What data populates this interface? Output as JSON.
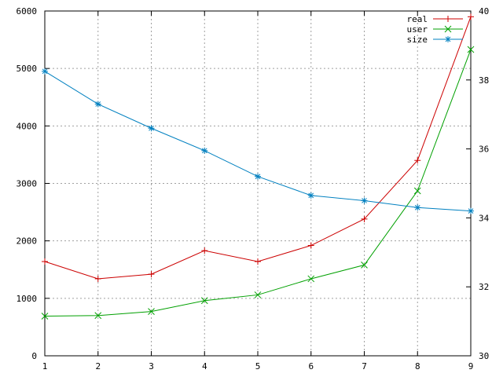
{
  "chart_data": {
    "type": "line",
    "title": "",
    "xlabel": "",
    "ylabel": "",
    "y2label": "",
    "x": [
      1,
      2,
      3,
      4,
      5,
      6,
      7,
      8,
      9
    ],
    "xlim": [
      1,
      9
    ],
    "ylim": [
      0,
      6000
    ],
    "y2lim": [
      30,
      40
    ],
    "grid": true,
    "legend_position": "top-right",
    "x_ticks": [
      "1",
      "2",
      "3",
      "4",
      "5",
      "6",
      "7",
      "8",
      "9"
    ],
    "y_ticks": [
      "0",
      "1000",
      "2000",
      "3000",
      "4000",
      "5000",
      "6000"
    ],
    "y2_ticks": [
      "30",
      "32",
      "34",
      "36",
      "38",
      "40"
    ],
    "series": [
      {
        "name": "real",
        "axis": "left",
        "color": "#cc0000",
        "marker": "plus",
        "values": [
          1640,
          1340,
          1420,
          1830,
          1640,
          1920,
          2380,
          3400,
          5900
        ]
      },
      {
        "name": "user",
        "axis": "left",
        "color": "#00a000",
        "marker": "cross",
        "values": [
          690,
          700,
          770,
          960,
          1060,
          1340,
          1580,
          2870,
          5330
        ]
      },
      {
        "name": "size",
        "axis": "right",
        "color": "#0080c0",
        "marker": "star",
        "values": [
          38.25,
          37.3,
          36.6,
          35.95,
          35.2,
          34.65,
          34.5,
          34.3,
          34.2
        ]
      }
    ]
  }
}
